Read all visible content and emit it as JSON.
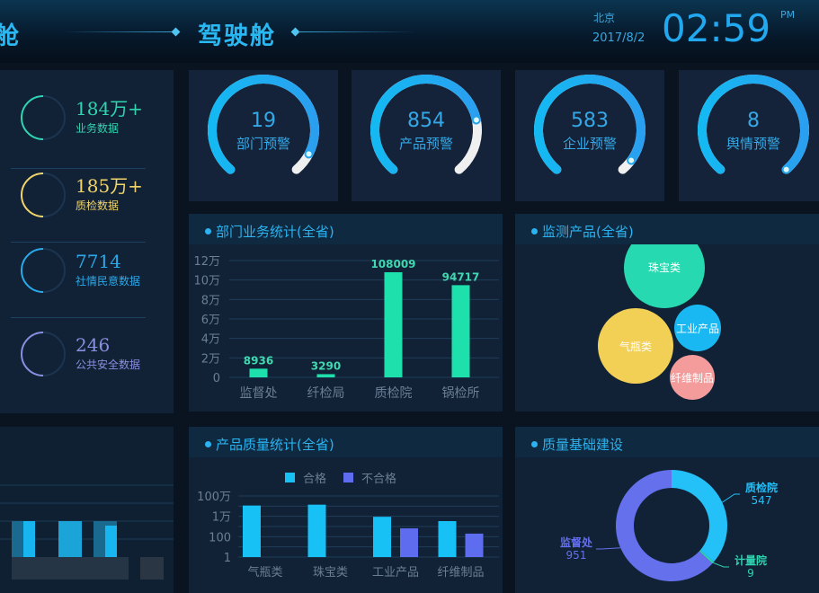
{
  "header": {
    "cut_title": "舱",
    "title": "驾驶舱",
    "city": "北京",
    "date": "2017/8/2",
    "time": "02:59",
    "ampm": "PM"
  },
  "stats": [
    {
      "value": "184万+",
      "label": "业务数据",
      "color": "#2fd4b0"
    },
    {
      "value": "185万+",
      "label": "质检数据",
      "color": "#f0d46a"
    },
    {
      "value": "7714",
      "label": "社情民意数据",
      "color": "#2aa8e8"
    },
    {
      "value": "246",
      "label": "公共安全数据",
      "color": "#8a8ee0"
    }
  ],
  "gauges": [
    {
      "value": "19",
      "label": "部门预警",
      "fill": 0.92
    },
    {
      "value": "854",
      "label": "产品预警",
      "fill": 0.78
    },
    {
      "value": "583",
      "label": "企业预警",
      "fill": 0.95
    },
    {
      "value": "8",
      "label": "舆情预警",
      "fill": 1.0
    }
  ],
  "panels": {
    "dept": "部门业务统计(全省)",
    "monitor": "监测产品(全省)",
    "quality": "产品质量统计(全省)",
    "base": "质量基础建设"
  },
  "chart_data": [
    {
      "type": "bar",
      "title": "部门业务统计(全省)",
      "categories": [
        "监督处",
        "纤检局",
        "质检院",
        "锅检所"
      ],
      "values": [
        8936,
        3290,
        108009,
        94717
      ],
      "data_labels": [
        "8936",
        "3290",
        "108009",
        "94717"
      ],
      "yticks": [
        "0",
        "2万",
        "4万",
        "6万",
        "8万",
        "10万",
        "12万"
      ],
      "ylim": [
        0,
        120000
      ],
      "grid": true,
      "color": "#1de0ac"
    },
    {
      "type": "scatter",
      "subtype": "bubble",
      "title": "监测产品(全省)",
      "items": [
        {
          "name": "珠宝类",
          "color": "#27d9b0"
        },
        {
          "name": "气瓶类",
          "color": "#f2cf55"
        },
        {
          "name": "工业产品",
          "color": "#1ab8f2"
        },
        {
          "name": "纤维制品",
          "color": "#f49b9b"
        }
      ]
    },
    {
      "type": "bar",
      "title": "产品质量统计(全省)",
      "scale": "log",
      "categories": [
        "气瓶类",
        "珠宝类",
        "工业产品",
        "纤维制品"
      ],
      "series": [
        {
          "name": "合格",
          "color": "#17c0f5",
          "values": [
            115000,
            140000,
            9000,
            3400
          ]
        },
        {
          "name": "不合格",
          "color": "#5e6cf0",
          "values": [
            null,
            null,
            660,
            200
          ]
        }
      ],
      "yticks": [
        "1",
        "100",
        "1万",
        "100万"
      ],
      "ylim": [
        1,
        1000000
      ],
      "legend": "top",
      "grid": true
    },
    {
      "type": "pie",
      "subtype": "donut",
      "title": "质量基础建设",
      "slices": [
        {
          "name": "质检院",
          "value": 547,
          "label": "547",
          "color": "#24c0f8"
        },
        {
          "name": "计量院",
          "value": 9,
          "label": "9",
          "color": "#2fd4b0"
        },
        {
          "name": "监督处",
          "value": 951,
          "label": "951",
          "color": "#6470ec"
        }
      ]
    }
  ]
}
